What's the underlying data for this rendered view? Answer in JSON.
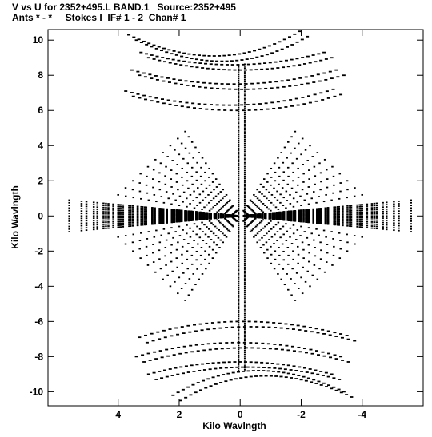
{
  "header": {
    "line1": "V vs U for 2352+495.L BAND.1   Source:2352+495",
    "line2": "Ants * - *     Stokes I  IF# 1 - 2  Chan# 1"
  },
  "chart_data": {
    "type": "scatter",
    "title": "V vs U for 2352+495.L BAND.1   Source:2352+495",
    "subtitle": "Ants * - *     Stokes I  IF# 1 - 2  Chan# 1",
    "xlabel": "Kilo Wavlngth",
    "ylabel": "Kilo Wavlngth",
    "xlim": [
      6.3,
      -6.0
    ],
    "ylim": [
      -10.8,
      10.6
    ],
    "x_ticks": [
      4,
      2,
      0,
      -2,
      -4
    ],
    "x_tick_labels": [
      "4",
      "2",
      "0",
      "-2",
      "-4"
    ],
    "y_ticks": [
      10,
      8,
      6,
      4,
      2,
      0,
      -2,
      -4,
      -6,
      -8,
      -10
    ],
    "y_tick_labels": [
      "10",
      "8",
      "6",
      "4",
      "2",
      "0",
      "-2",
      "-4",
      "-6",
      "-8",
      "-10"
    ],
    "grid": false,
    "marker_color": "#000000",
    "series": [
      {
        "description_free": true,
        "horizontal_lobe_tracks": [
          {
            "scale": 1.0
          },
          {
            "scale": 0.9
          },
          {
            "scale": 0.8
          },
          {
            "scale": 0.7
          },
          {
            "scale": 0.6
          },
          {
            "scale": 0.5
          },
          {
            "scale": 0.4
          },
          {
            "scale": 0.3
          }
        ],
        "lobe_horizontal": {
          "u_max": 5.6,
          "v_max": 1.0
        },
        "lobe_diagonal": {
          "u_max": 4.0,
          "v_max": 4.8
        },
        "lobe_vertical": {
          "u_max": 0.3,
          "v_max": 3.2
        },
        "arcs_upper": [
          {
            "u_start": 3.5,
            "v_start": 6.8,
            "u_end": -3.3,
            "v_end": 6.9,
            "v_mid": 6.0
          },
          {
            "u_start": 3.3,
            "v_start": 8.0,
            "u_end": -3.4,
            "v_end": 8.0,
            "v_mid": 7.2
          },
          {
            "u_start": 3.0,
            "v_start": 9.0,
            "u_end": -3.0,
            "v_end": 9.0,
            "v_mid": 8.3
          },
          {
            "u_start": 3.4,
            "v_start": 10.0,
            "u_end": -2.2,
            "v_end": 10.2,
            "v_mid": 8.8
          }
        ],
        "arcs_lower": [
          {
            "u_start": 3.3,
            "v_start": -6.9,
            "u_end": -3.5,
            "v_end": -6.8,
            "v_mid": -6.0
          },
          {
            "u_start": 3.4,
            "v_start": -8.0,
            "u_end": -3.3,
            "v_end": -8.0,
            "v_mid": -7.2
          },
          {
            "u_start": 3.0,
            "v_start": -9.0,
            "u_end": -3.0,
            "v_end": -9.0,
            "v_mid": -8.3
          },
          {
            "u_start": 2.2,
            "v_start": -10.2,
            "u_end": -3.4,
            "v_end": -10.0,
            "v_mid": -8.8
          }
        ],
        "v_column": {
          "u": 0.05,
          "v_min": -8.8,
          "v_max": 8.6
        }
      }
    ]
  }
}
